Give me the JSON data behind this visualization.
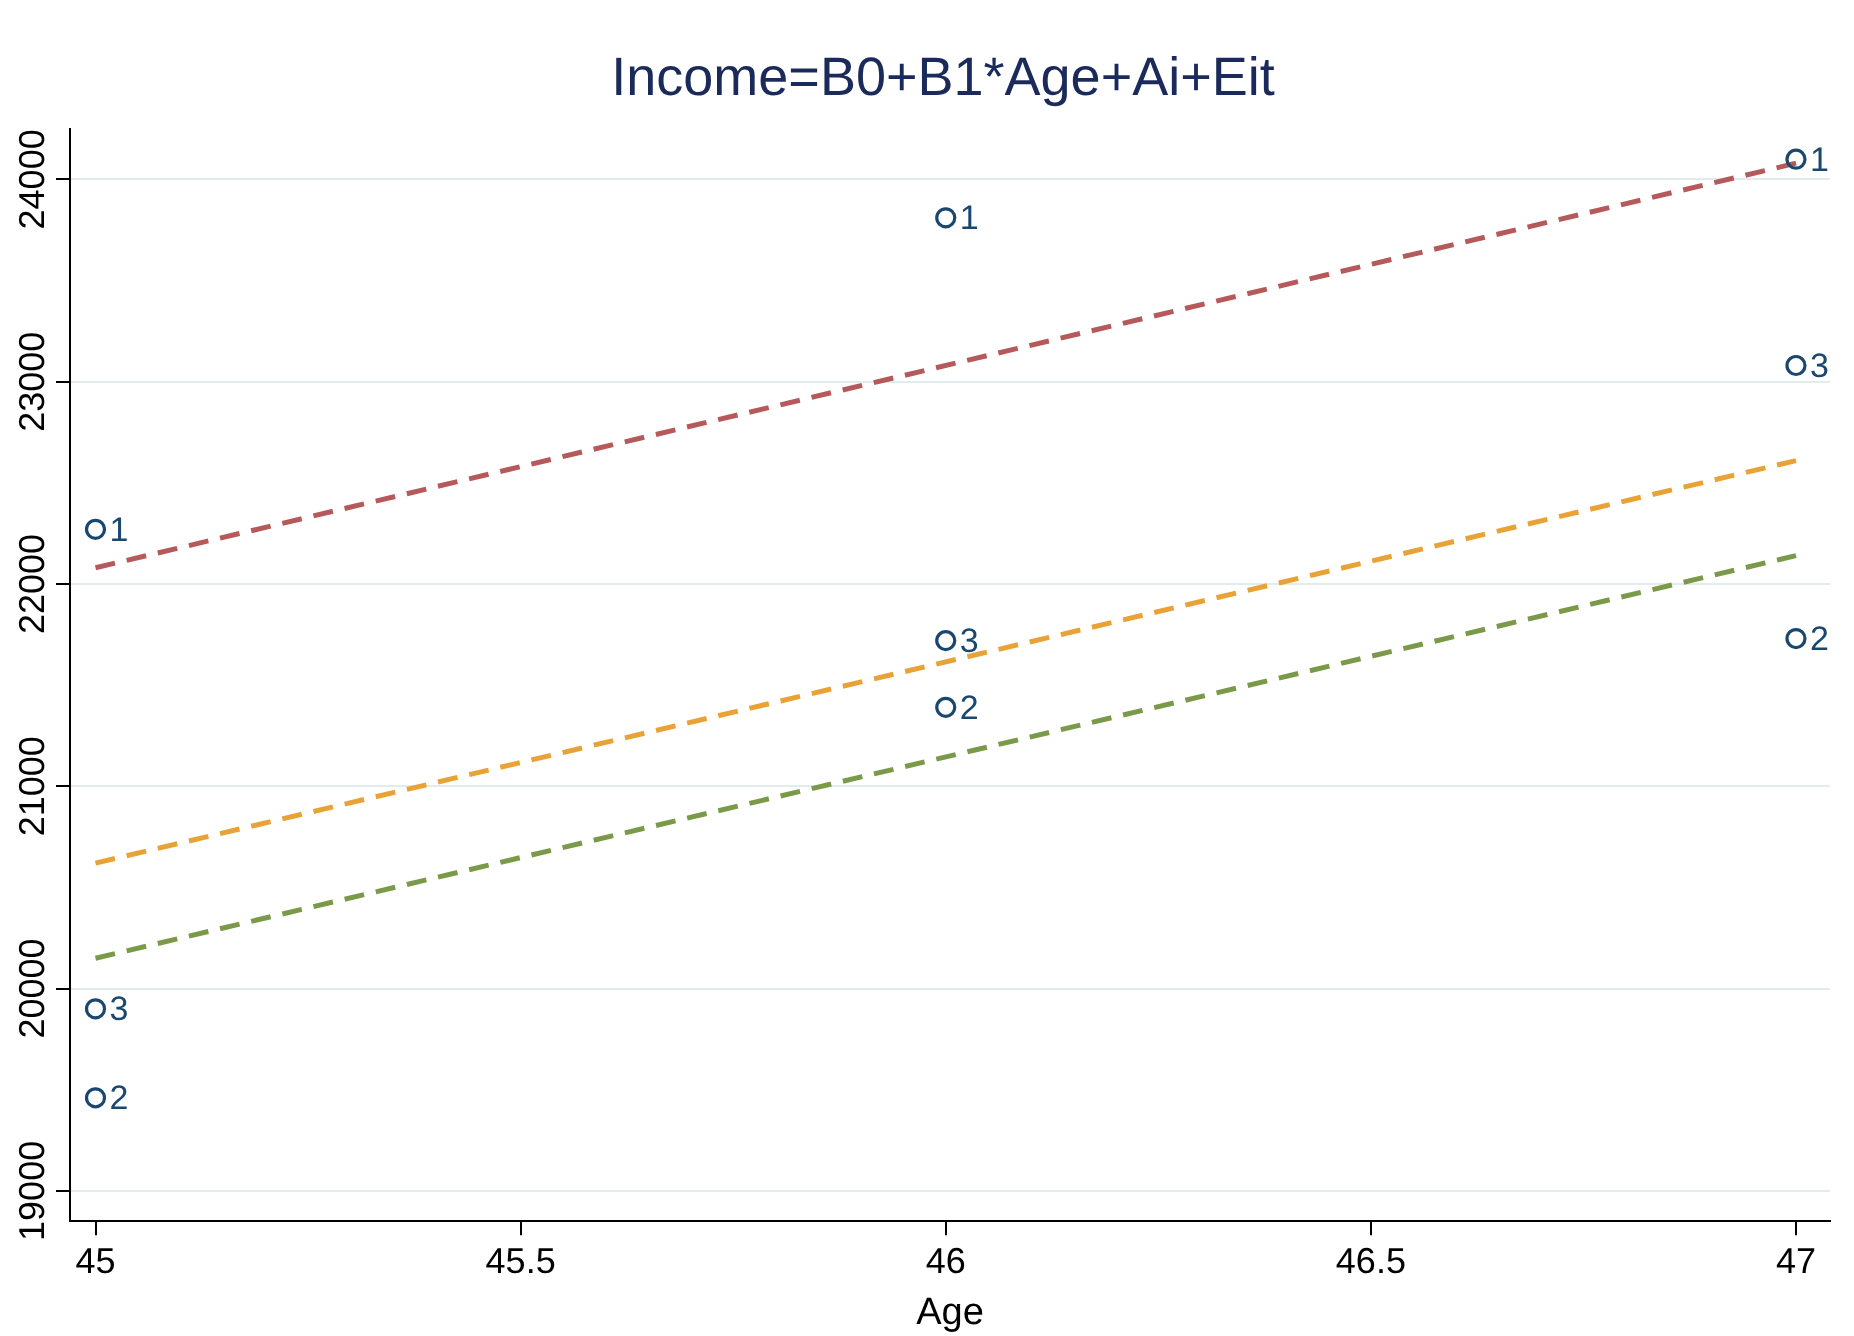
{
  "chart_data": {
    "type": "scatter",
    "title": "Income=B0+B1*Age+Ai+Eit",
    "xlabel": "Age",
    "xlim": [
      44.97,
      47.04
    ],
    "xticks": [
      45,
      45.5,
      46,
      46.5,
      47
    ],
    "ylim": [
      18850,
      24250
    ],
    "yticks": [
      19000,
      20000,
      21000,
      22000,
      23000,
      24000
    ],
    "grid": "y",
    "marker": "circle",
    "legend": false,
    "series": [
      {
        "name": "1",
        "color": "#1a476f",
        "x": [
          45,
          46,
          47
        ],
        "values": [
          22270,
          23810,
          24100
        ]
      },
      {
        "name": "2",
        "color": "#1a476f",
        "x": [
          45,
          46,
          47
        ],
        "values": [
          19460,
          21390,
          21730
        ]
      },
      {
        "name": "3",
        "color": "#1a476f",
        "x": [
          45,
          46,
          47
        ],
        "values": [
          19900,
          21720,
          23080
        ]
      },
      {
        "type": "line",
        "color": "#b5595a",
        "marker": "none",
        "line_style": "dashed",
        "x": [
          45,
          47
        ],
        "values": [
          22080,
          24080
        ]
      },
      {
        "type": "line",
        "color": "#e8a236",
        "marker": "none",
        "line_style": "dashed",
        "x": [
          45,
          47
        ],
        "values": [
          20620,
          22610
        ]
      },
      {
        "type": "line",
        "color": "#7a9a4a",
        "marker": "none",
        "line_style": "dashed",
        "x": [
          45,
          47
        ],
        "values": [
          20150,
          22140
        ]
      }
    ]
  }
}
